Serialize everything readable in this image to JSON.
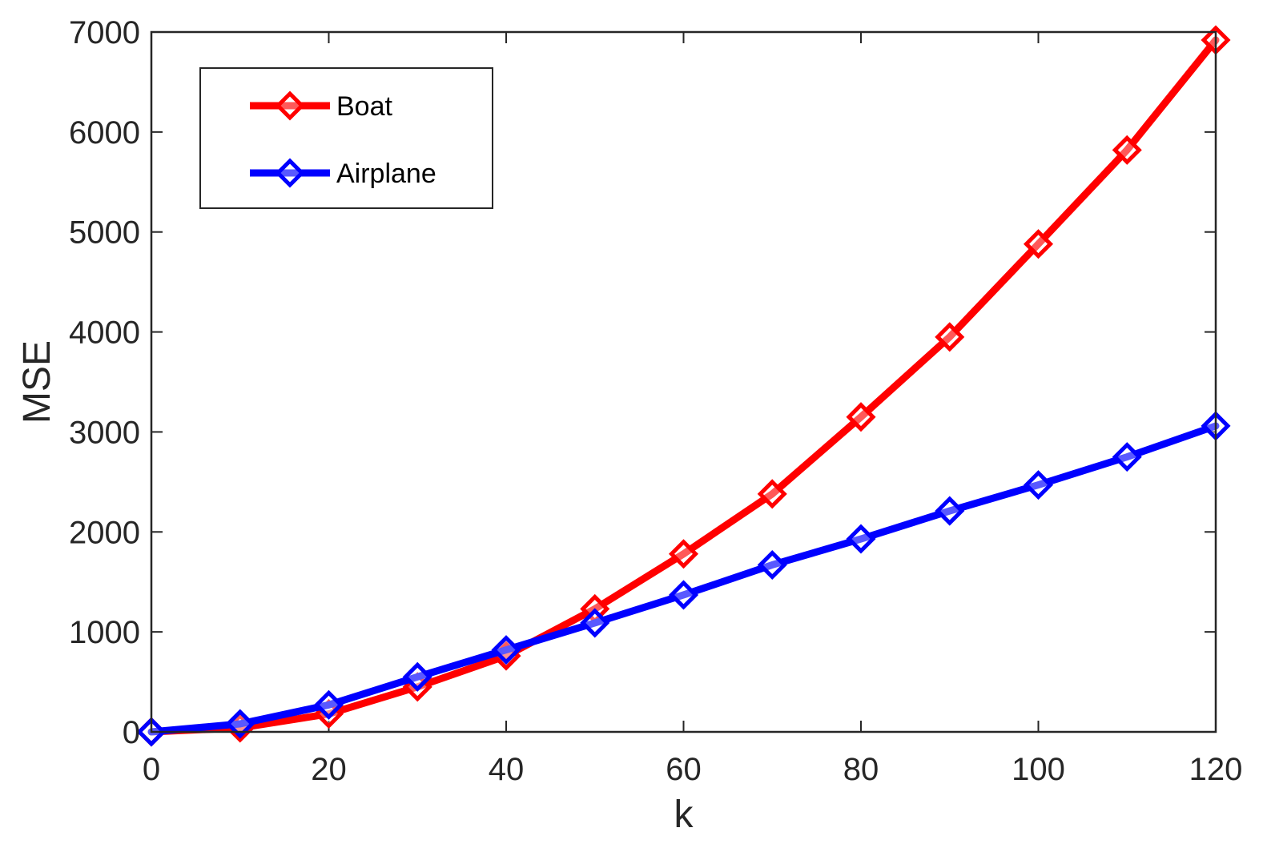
{
  "chart_data": {
    "type": "line",
    "title": "",
    "xlabel": "k",
    "ylabel": "MSE",
    "xlim": [
      0,
      120
    ],
    "ylim": [
      0,
      7000
    ],
    "xticks": [
      "0",
      "20",
      "40",
      "60",
      "80",
      "100",
      "120"
    ],
    "yticks": [
      "0",
      "1000",
      "2000",
      "3000",
      "4000",
      "5000",
      "6000",
      "7000"
    ],
    "grid": false,
    "legend_position": "top-left",
    "x": [
      0,
      10,
      20,
      30,
      40,
      50,
      60,
      70,
      80,
      90,
      100,
      110,
      120
    ],
    "series": [
      {
        "name": "Boat",
        "color": "#ff0000",
        "marker": "diamond",
        "values": [
          0,
          40,
          180,
          450,
          760,
          1230,
          1780,
          2380,
          3150,
          3950,
          4880,
          5820,
          6920
        ]
      },
      {
        "name": "Airplane",
        "color": "#0000ff",
        "marker": "diamond",
        "values": [
          0,
          80,
          270,
          550,
          820,
          1090,
          1370,
          1670,
          1930,
          2210,
          2470,
          2750,
          3060
        ]
      }
    ]
  }
}
